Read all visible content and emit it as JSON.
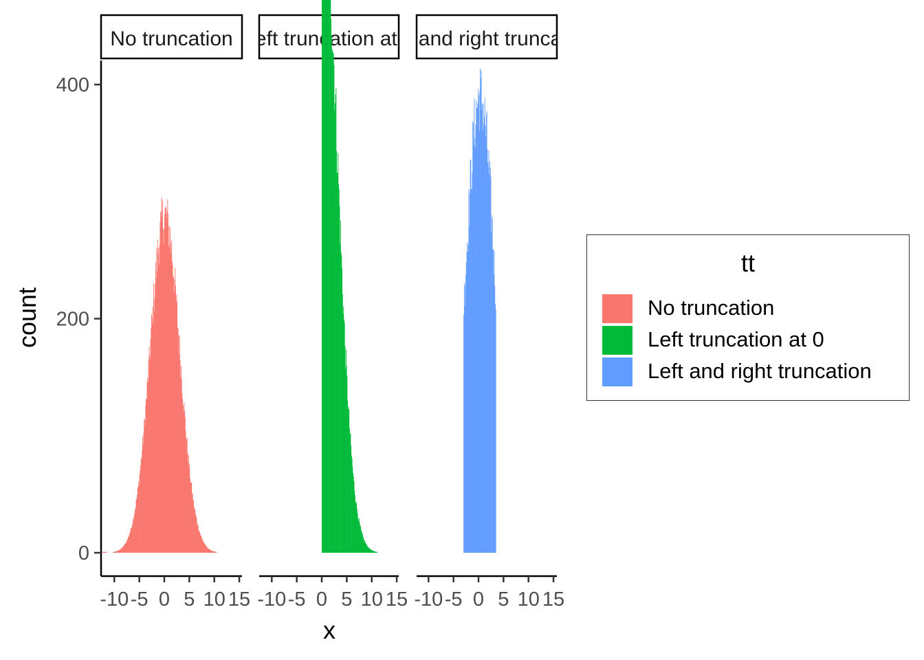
{
  "chart_data": {
    "type": "bar",
    "subtype": "histogram",
    "xlabel": "x",
    "ylabel": "count",
    "ylim": [
      0,
      560
    ],
    "yticks": [
      0,
      200,
      400
    ],
    "xlim": [
      -13,
      15
    ],
    "xticks": [
      -10,
      -5,
      0,
      5,
      10,
      15
    ],
    "bin_width": 0.1,
    "facets": [
      {
        "strip_label": "No truncation",
        "series_name": "No truncation",
        "x_range": [
          -12.5,
          11.8
        ],
        "peak_x": 0.1,
        "peak_count": 288,
        "sd": 2.95,
        "truncate_left": null,
        "truncate_right": null
      },
      {
        "strip_label": "Left truncation at 0",
        "series_name": "Left truncation at 0",
        "x_range": [
          0,
          14.3
        ],
        "peak_x": 0.2,
        "peak_count": 558,
        "sd": 2.95,
        "truncate_left": 0,
        "truncate_right": null
      },
      {
        "strip_label": "Left and right truncation",
        "series_name": "Left and right truncation",
        "x_range": [
          -3,
          3.5
        ],
        "peak_x": 0.3,
        "peak_count": 390,
        "sd": 2.95,
        "truncate_left": -3,
        "truncate_right": 3.5
      }
    ],
    "grid": false,
    "legend_position": "right"
  },
  "legend": {
    "title": "tt",
    "items": [
      {
        "label": "No truncation",
        "color": "#F8766D"
      },
      {
        "label": "Left truncation at 0",
        "color": "#00BA38"
      },
      {
        "label": "Left and right truncation",
        "color": "#619CFF"
      }
    ]
  }
}
